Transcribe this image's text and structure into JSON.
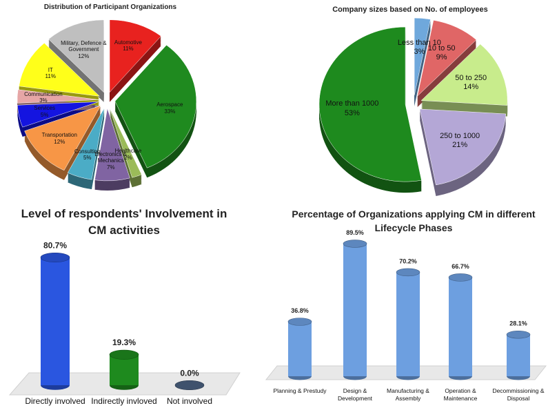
{
  "chart_data": [
    {
      "type": "pie",
      "title": "Distribution of Participant Organizations",
      "categories": [
        "Automotive",
        "Aerospace",
        "Healthcare",
        "Electronics & Mechanics",
        "Consulting",
        "Transportation",
        "Services",
        "Communication",
        "IT",
        "Military, Defence & Government"
      ],
      "values": [
        11,
        33,
        2,
        7,
        5,
        12,
        5,
        3,
        11,
        12
      ],
      "value_labels": [
        "11%",
        "33%",
        "2%",
        "7%",
        "5%",
        "12%",
        "5%",
        "3%",
        "11%",
        "12%"
      ],
      "colors": [
        "#e8221f",
        "#1f8a1f",
        "#9bbb59",
        "#8064a2",
        "#4bacc6",
        "#f79646",
        "#1414e0",
        "#e6a6a6",
        "#ffff1a",
        "#bfbfbf"
      ]
    },
    {
      "type": "pie",
      "title": "Company sizes based on No. of employees",
      "categories": [
        "Less than 10",
        "10 to 50",
        "50 to 250",
        "250 to 1000",
        "More than 1000"
      ],
      "values": [
        3,
        9,
        14,
        21,
        53
      ],
      "value_labels": [
        "3%",
        "9%",
        "14%",
        "21%",
        "53%"
      ],
      "colors": [
        "#6fa8dc",
        "#e06666",
        "#c8ec8c",
        "#b4a7d6",
        "#1e8a1e"
      ]
    },
    {
      "type": "bar",
      "title": "Level of respondents' Involvement in CM activities",
      "categories": [
        "Directly involved",
        "Indirectly invloved",
        "Not involved"
      ],
      "values": [
        80.7,
        19.3,
        0.0
      ],
      "value_labels": [
        "80.7%",
        "19.3%",
        "0.0%"
      ],
      "colors": [
        "#2a56e0",
        "#1e8a1e",
        "#4a6080"
      ]
    },
    {
      "type": "bar",
      "title": "Percentage of Organizations applying CM in different Lifecycle Phases",
      "categories": [
        "Planning & Prestudy",
        "Design & Development",
        "Manufacturing & Assembly",
        "Operation & Maintenance",
        "Decommissioning & Disposal"
      ],
      "values": [
        36.8,
        89.5,
        70.2,
        66.7,
        28.1
      ],
      "value_labels": [
        "36.8%",
        "89.5%",
        "70.2%",
        "66.7%",
        "28.1%"
      ],
      "colors": [
        "#6d9fe0",
        "#6d9fe0",
        "#6d9fe0",
        "#6d9fe0",
        "#6d9fe0"
      ]
    }
  ]
}
